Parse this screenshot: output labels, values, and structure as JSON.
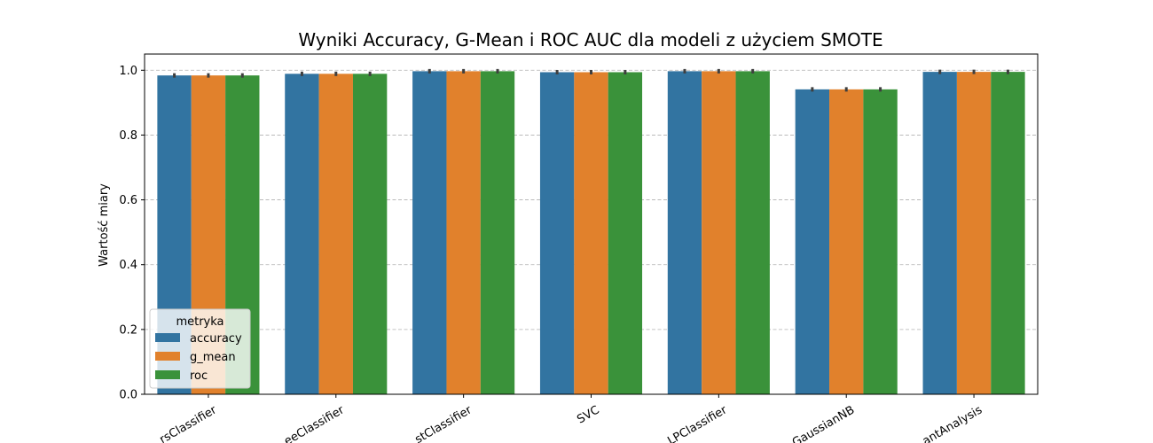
{
  "chart_data": {
    "type": "bar",
    "title": "Wyniki Accuracy, G-Mean i ROC AUC dla modeli z użyciem SMOTE",
    "xlabel": "",
    "ylabel": "Wartość miary",
    "ylim": [
      0,
      1.05
    ],
    "yticks": [
      "0.0",
      "0.2",
      "0.4",
      "0.6",
      "0.8",
      "1.0"
    ],
    "grid": "horizontal dashed",
    "categories": [
      "rsClassifier",
      "eeClassifier",
      "stClassifier",
      "SVC",
      "LPClassifier",
      "GaussianNB",
      "antAnalysis"
    ],
    "series": [
      {
        "name": "accuracy",
        "color": "#3274a1",
        "values": [
          0.984,
          0.989,
          0.997,
          0.994,
          0.997,
          0.941,
          0.995
        ]
      },
      {
        "name": "g_mean",
        "color": "#e1812c",
        "values": [
          0.984,
          0.989,
          0.997,
          0.994,
          0.997,
          0.941,
          0.995
        ]
      },
      {
        "name": "roc",
        "color": "#3a923a",
        "values": [
          0.984,
          0.989,
          0.997,
          0.994,
          0.997,
          0.941,
          0.995
        ]
      }
    ],
    "error_bars": true,
    "legend": {
      "title": "metryka",
      "placement": "lower-left"
    }
  }
}
